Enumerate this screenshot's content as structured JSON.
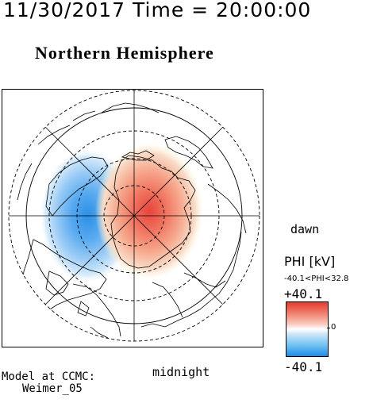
{
  "header": {
    "datetime": "11/30/2017 Time = 20:00:00",
    "hemisphere": "Northern Hemisphere"
  },
  "map_labels": {
    "dawn": "dawn",
    "midnight": "midnight"
  },
  "colorbar": {
    "title": "PHI [kV]",
    "range_text": "-40.1<PHI<32.8",
    "max_label": "+40.1",
    "zero_label": "0",
    "min_label": "-40.1",
    "colors": {
      "positive": "#e23b2f",
      "neutral": "#ffffff",
      "negative": "#1f8be6"
    }
  },
  "footer": {
    "line1": "Model at CCMC:",
    "line2": "Weimer_05"
  }
}
